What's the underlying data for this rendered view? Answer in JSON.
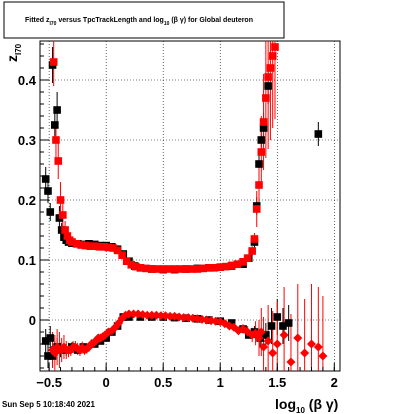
{
  "title": {
    "parts": [
      "Fitted  z",
      "I70",
      "  versus TpcTrackLength and log",
      "10",
      " (β γ) for Global deuteron"
    ]
  },
  "timestamp": "Sun Sep  5 10:18:40 2021",
  "colors": {
    "series_black": "#000000",
    "series_red": "#ff0000",
    "grid": "#000000"
  },
  "chart_data": {
    "type": "scatter",
    "xlabel": {
      "base": "log",
      "sub": "10",
      "tail": " (β γ)"
    },
    "ylabel": {
      "base": "z",
      "sub": "I70"
    },
    "xlim": [
      -0.58,
      2.05
    ],
    "ylim": [
      -0.085,
      0.465
    ],
    "x_ticks": [
      -0.5,
      0,
      0.5,
      1,
      1.5,
      2
    ],
    "x_tick_labels": [
      "−0.5",
      "0",
      "0.5",
      "1",
      "1.5",
      "2"
    ],
    "y_ticks": [
      0,
      0.1,
      0.2,
      0.3,
      0.4
    ],
    "y_tick_labels": [
      "0",
      "0.1",
      "0.2",
      "0.3",
      "0.4"
    ],
    "grid": true,
    "series": [
      {
        "color": "black",
        "marker": "square",
        "points": [
          [
            -0.53,
            0.235,
            0.02
          ],
          [
            -0.51,
            0.215,
            0.02
          ],
          [
            -0.49,
            0.18,
            0.015
          ],
          [
            -0.47,
            0.425,
            0.03
          ],
          [
            -0.45,
            0.325,
            0.025
          ],
          [
            -0.43,
            0.35,
            0.03
          ],
          [
            -0.41,
            0.17,
            0.02
          ],
          [
            -0.39,
            0.15,
            0.012
          ],
          [
            -0.37,
            0.138,
            0.01
          ],
          [
            -0.35,
            0.133,
            0.008
          ],
          [
            -0.33,
            0.13,
            0.007
          ],
          [
            -0.3,
            0.128,
            0.005
          ],
          [
            -0.25,
            0.127,
            0.004
          ],
          [
            -0.2,
            0.126,
            0.004
          ],
          [
            -0.15,
            0.127,
            0.004
          ],
          [
            -0.1,
            0.126,
            0.003
          ],
          [
            -0.05,
            0.124,
            0.003
          ],
          [
            0.0,
            0.124,
            0.003
          ],
          [
            0.05,
            0.122,
            0.002
          ],
          [
            0.1,
            0.118,
            0.002
          ],
          [
            0.15,
            0.11,
            0.002
          ],
          [
            0.2,
            0.098,
            0.002
          ],
          [
            0.25,
            0.09,
            0.002
          ],
          [
            0.3,
            0.087,
            0.002
          ],
          [
            0.4,
            0.085,
            0.002
          ],
          [
            0.5,
            0.084,
            0.002
          ],
          [
            0.6,
            0.084,
            0.002
          ],
          [
            0.7,
            0.085,
            0.002
          ],
          [
            0.8,
            0.086,
            0.002
          ],
          [
            0.9,
            0.087,
            0.002
          ],
          [
            1.0,
            0.088,
            0.002
          ],
          [
            1.1,
            0.09,
            0.003
          ],
          [
            1.2,
            0.093,
            0.004
          ],
          [
            1.25,
            0.103,
            0.005
          ],
          [
            1.3,
            0.13,
            0.01
          ],
          [
            1.32,
            0.19,
            0.015
          ],
          [
            1.34,
            0.26,
            0.02
          ],
          [
            1.36,
            0.3,
            0.02
          ],
          [
            1.38,
            0.32,
            0.025
          ],
          [
            1.42,
            0.39,
            0.03
          ],
          [
            1.86,
            0.31,
            0.02
          ]
        ]
      },
      {
        "color": "black",
        "marker": "square",
        "points": [
          [
            -0.53,
            -0.035,
            0.02
          ],
          [
            -0.51,
            -0.06,
            0.02
          ],
          [
            -0.49,
            -0.03,
            0.02
          ],
          [
            -0.47,
            -0.06,
            0.02
          ],
          [
            -0.45,
            -0.05,
            0.015
          ],
          [
            -0.43,
            -0.045,
            0.015
          ],
          [
            -0.4,
            -0.05,
            0.012
          ],
          [
            -0.35,
            -0.05,
            0.01
          ],
          [
            -0.3,
            -0.045,
            0.008
          ],
          [
            -0.25,
            -0.05,
            0.007
          ],
          [
            -0.2,
            -0.045,
            0.006
          ],
          [
            -0.1,
            -0.04,
            0.005
          ],
          [
            -0.05,
            -0.035,
            0.004
          ],
          [
            0.0,
            -0.03,
            0.004
          ],
          [
            0.05,
            -0.02,
            0.003
          ],
          [
            0.1,
            -0.01,
            0.003
          ],
          [
            0.15,
            0.005,
            0.003
          ],
          [
            0.2,
            0.005,
            0.002
          ],
          [
            0.3,
            0.005,
            0.002
          ],
          [
            0.4,
            0.005,
            0.002
          ],
          [
            0.5,
            0.005,
            0.002
          ],
          [
            0.6,
            0.004,
            0.002
          ],
          [
            0.7,
            0.003,
            0.002
          ],
          [
            0.8,
            0.002,
            0.002
          ],
          [
            0.9,
            0.0,
            0.002
          ],
          [
            1.0,
            -0.002,
            0.002
          ],
          [
            1.1,
            -0.005,
            0.003
          ],
          [
            1.2,
            -0.015,
            0.004
          ],
          [
            1.25,
            -0.025,
            0.006
          ],
          [
            1.3,
            -0.02,
            0.01
          ],
          [
            1.35,
            -0.03,
            0.015
          ],
          [
            1.4,
            -0.025,
            0.02
          ],
          [
            1.45,
            -0.01,
            0.03
          ],
          [
            1.5,
            0.005,
            0.03
          ],
          [
            1.55,
            -0.01,
            0.03
          ],
          [
            1.6,
            -0.005,
            0.03
          ]
        ]
      },
      {
        "color": "red",
        "marker": "square",
        "points": [
          [
            -0.46,
            0.43,
            0.04
          ],
          [
            -0.44,
            0.3,
            0.03
          ],
          [
            -0.42,
            0.265,
            0.03
          ],
          [
            -0.4,
            0.2,
            0.03
          ],
          [
            -0.38,
            0.175,
            0.02
          ],
          [
            -0.36,
            0.15,
            0.015
          ],
          [
            -0.34,
            0.14,
            0.012
          ],
          [
            -0.32,
            0.133,
            0.01
          ],
          [
            -0.3,
            0.13,
            0.008
          ],
          [
            -0.26,
            0.127,
            0.006
          ],
          [
            -0.22,
            0.125,
            0.006
          ],
          [
            -0.18,
            0.124,
            0.005
          ],
          [
            -0.14,
            0.123,
            0.005
          ],
          [
            -0.1,
            0.123,
            0.004
          ],
          [
            -0.06,
            0.122,
            0.004
          ],
          [
            -0.02,
            0.122,
            0.004
          ],
          [
            0.02,
            0.121,
            0.003
          ],
          [
            0.06,
            0.12,
            0.003
          ],
          [
            0.1,
            0.116,
            0.003
          ],
          [
            0.14,
            0.108,
            0.003
          ],
          [
            0.18,
            0.098,
            0.003
          ],
          [
            0.22,
            0.092,
            0.003
          ],
          [
            0.26,
            0.089,
            0.003
          ],
          [
            0.3,
            0.087,
            0.003
          ],
          [
            0.35,
            0.086,
            0.003
          ],
          [
            0.4,
            0.085,
            0.003
          ],
          [
            0.45,
            0.085,
            0.003
          ],
          [
            0.5,
            0.085,
            0.003
          ],
          [
            0.55,
            0.085,
            0.003
          ],
          [
            0.6,
            0.085,
            0.003
          ],
          [
            0.65,
            0.085,
            0.003
          ],
          [
            0.7,
            0.085,
            0.003
          ],
          [
            0.75,
            0.085,
            0.003
          ],
          [
            0.8,
            0.085,
            0.003
          ],
          [
            0.85,
            0.086,
            0.003
          ],
          [
            0.9,
            0.087,
            0.003
          ],
          [
            0.95,
            0.087,
            0.003
          ],
          [
            1.0,
            0.088,
            0.003
          ],
          [
            1.05,
            0.089,
            0.003
          ],
          [
            1.1,
            0.091,
            0.004
          ],
          [
            1.15,
            0.093,
            0.004
          ],
          [
            1.2,
            0.097,
            0.005
          ],
          [
            1.24,
            0.103,
            0.006
          ],
          [
            1.28,
            0.115,
            0.008
          ],
          [
            1.3,
            0.135,
            0.01
          ],
          [
            1.32,
            0.185,
            0.03
          ],
          [
            1.34,
            0.225,
            0.04
          ],
          [
            1.36,
            0.28,
            0.06
          ],
          [
            1.38,
            0.33,
            0.08
          ],
          [
            1.4,
            0.37,
            0.1
          ],
          [
            1.42,
            0.405,
            0.12
          ],
          [
            1.44,
            0.42,
            0.12
          ],
          [
            1.46,
            0.44,
            0.12
          ],
          [
            1.48,
            0.455,
            0.12
          ]
        ]
      },
      {
        "color": "red",
        "marker": "diamond",
        "points": [
          [
            -0.47,
            -0.05,
            0.03
          ],
          [
            -0.45,
            -0.055,
            0.03
          ],
          [
            -0.43,
            -0.045,
            0.03
          ],
          [
            -0.41,
            -0.05,
            0.03
          ],
          [
            -0.39,
            -0.05,
            0.02
          ],
          [
            -0.37,
            -0.045,
            0.02
          ],
          [
            -0.35,
            -0.05,
            0.015
          ],
          [
            -0.33,
            -0.05,
            0.012
          ],
          [
            -0.31,
            -0.05,
            0.01
          ],
          [
            -0.29,
            -0.045,
            0.01
          ],
          [
            -0.27,
            -0.045,
            0.01
          ],
          [
            -0.25,
            -0.048,
            0.01
          ],
          [
            -0.23,
            -0.05,
            0.01
          ],
          [
            -0.21,
            -0.046,
            0.01
          ],
          [
            -0.19,
            -0.05,
            0.008
          ],
          [
            -0.17,
            -0.048,
            0.008
          ],
          [
            -0.15,
            -0.045,
            0.008
          ],
          [
            -0.13,
            -0.04,
            0.008
          ],
          [
            -0.11,
            -0.038,
            0.007
          ],
          [
            -0.09,
            -0.035,
            0.007
          ],
          [
            -0.07,
            -0.03,
            0.006
          ],
          [
            -0.05,
            -0.03,
            0.006
          ],
          [
            -0.03,
            -0.028,
            0.005
          ],
          [
            -0.01,
            -0.025,
            0.005
          ],
          [
            0.02,
            -0.02,
            0.005
          ],
          [
            0.05,
            -0.018,
            0.004
          ],
          [
            0.08,
            -0.012,
            0.004
          ],
          [
            0.11,
            -0.005,
            0.004
          ],
          [
            0.14,
            0.003,
            0.004
          ],
          [
            0.17,
            0.008,
            0.003
          ],
          [
            0.2,
            0.01,
            0.003
          ],
          [
            0.24,
            0.01,
            0.003
          ],
          [
            0.28,
            0.01,
            0.003
          ],
          [
            0.32,
            0.009,
            0.003
          ],
          [
            0.36,
            0.008,
            0.003
          ],
          [
            0.4,
            0.008,
            0.003
          ],
          [
            0.44,
            0.008,
            0.003
          ],
          [
            0.48,
            0.007,
            0.003
          ],
          [
            0.52,
            0.007,
            0.003
          ],
          [
            0.56,
            0.006,
            0.003
          ],
          [
            0.6,
            0.006,
            0.003
          ],
          [
            0.64,
            0.005,
            0.003
          ],
          [
            0.68,
            0.004,
            0.003
          ],
          [
            0.72,
            0.004,
            0.003
          ],
          [
            0.76,
            0.003,
            0.003
          ],
          [
            0.8,
            0.002,
            0.003
          ],
          [
            0.84,
            0.001,
            0.003
          ],
          [
            0.88,
            0.0,
            0.003
          ],
          [
            0.92,
            -0.001,
            0.003
          ],
          [
            0.96,
            -0.002,
            0.003
          ],
          [
            1.0,
            -0.003,
            0.004
          ],
          [
            1.04,
            -0.006,
            0.004
          ],
          [
            1.08,
            -0.01,
            0.005
          ],
          [
            1.12,
            -0.012,
            0.005
          ],
          [
            1.16,
            -0.018,
            0.006
          ],
          [
            1.2,
            -0.015,
            0.008
          ],
          [
            1.24,
            -0.02,
            0.01
          ],
          [
            1.28,
            -0.025,
            0.012
          ],
          [
            1.31,
            -0.022,
            0.02
          ],
          [
            1.34,
            -0.03,
            0.03
          ],
          [
            1.36,
            -0.02,
            0.04
          ],
          [
            1.38,
            -0.045,
            0.05
          ],
          [
            1.42,
            -0.035,
            0.06
          ],
          [
            1.46,
            -0.055,
            0.07
          ],
          [
            1.5,
            -0.04,
            0.07
          ],
          [
            1.56,
            -0.025,
            0.08
          ],
          [
            1.62,
            -0.07,
            0.08
          ],
          [
            1.68,
            -0.03,
            0.09
          ],
          [
            1.74,
            -0.055,
            0.09
          ],
          [
            1.8,
            -0.04,
            0.1
          ],
          [
            1.86,
            -0.045,
            0.1
          ],
          [
            1.9,
            -0.06,
            0.1
          ]
        ]
      }
    ]
  }
}
